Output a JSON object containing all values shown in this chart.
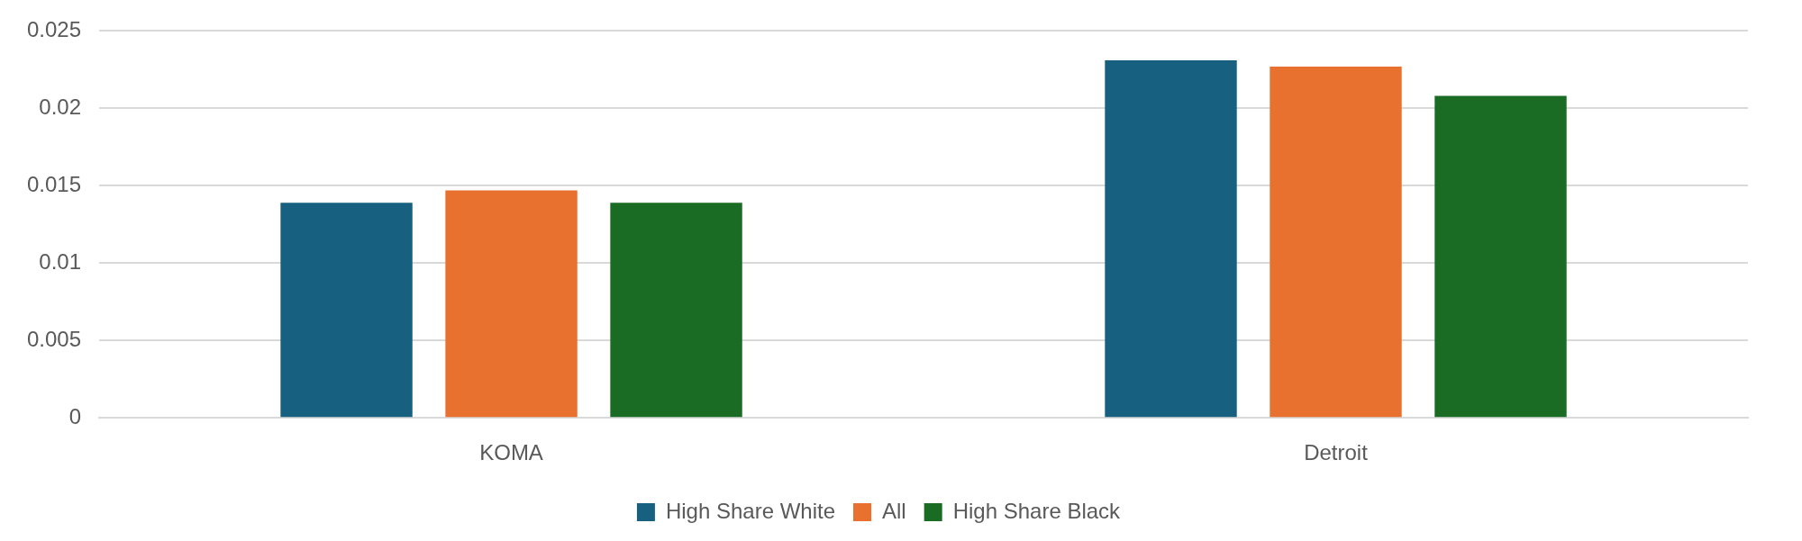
{
  "chart_data": {
    "type": "bar",
    "categories": [
      "KOMA",
      "Detroit"
    ],
    "series": [
      {
        "name": "High Share White",
        "color": "#17607f",
        "values": [
          0.0139,
          0.0231
        ]
      },
      {
        "name": "All",
        "color": "#e87130",
        "values": [
          0.0147,
          0.0227
        ]
      },
      {
        "name": "High Share Black",
        "color": "#1a6b24",
        "values": [
          0.0139,
          0.0208
        ]
      }
    ],
    "ylim": [
      0,
      0.025
    ],
    "yticks": [
      0,
      0.005,
      0.01,
      0.015,
      0.02,
      0.025
    ],
    "grid": "y",
    "legend": "bottom"
  }
}
